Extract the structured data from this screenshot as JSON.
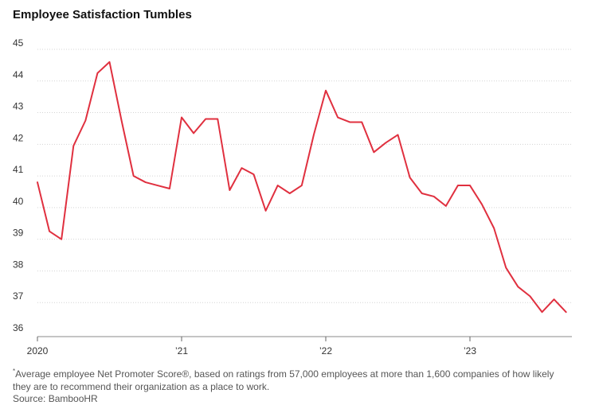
{
  "chart_data": {
    "type": "line",
    "title": "Employee Satisfaction Tumbles",
    "xlabel": "",
    "ylabel": "",
    "ylim": [
      36,
      45
    ],
    "yticks": [
      36,
      37,
      38,
      39,
      40,
      41,
      42,
      43,
      44,
      45
    ],
    "xticks": [
      {
        "month_index": 0,
        "label": "2020"
      },
      {
        "month_index": 12,
        "label": "’21"
      },
      {
        "month_index": 24,
        "label": "’22"
      },
      {
        "month_index": 36,
        "label": "’23"
      }
    ],
    "grid": true,
    "legend": "none",
    "series": [
      {
        "name": "",
        "color": "#e0303f",
        "x": [
          "2020-01",
          "2020-02",
          "2020-03",
          "2020-04",
          "2020-05",
          "2020-06",
          "2020-07",
          "2020-08",
          "2020-09",
          "2020-10",
          "2020-11",
          "2020-12",
          "2021-01",
          "2021-02",
          "2021-03",
          "2021-04",
          "2021-05",
          "2021-06",
          "2021-07",
          "2021-08",
          "2021-09",
          "2021-10",
          "2021-11",
          "2021-12",
          "2022-01",
          "2022-02",
          "2022-03",
          "2022-04",
          "2022-05",
          "2022-06",
          "2022-07",
          "2022-08",
          "2022-09",
          "2022-10",
          "2022-11",
          "2022-12",
          "2023-01",
          "2023-02",
          "2023-03",
          "2023-04",
          "2023-05",
          "2023-06",
          "2023-07",
          "2023-08",
          "2023-09"
        ],
        "values": [
          40.8,
          39.25,
          39.0,
          41.95,
          42.75,
          44.25,
          44.6,
          42.75,
          41.0,
          40.8,
          40.7,
          40.6,
          42.85,
          42.35,
          42.8,
          42.8,
          40.55,
          41.25,
          41.05,
          39.9,
          40.7,
          40.45,
          40.7,
          42.3,
          43.7,
          42.85,
          42.7,
          42.7,
          41.75,
          42.05,
          42.3,
          40.95,
          40.45,
          40.35,
          40.05,
          40.7,
          40.7,
          40.1,
          39.35,
          38.1,
          37.5,
          37.2,
          36.7,
          37.1,
          36.7
        ]
      }
    ]
  },
  "footnote": {
    "marker": "*",
    "text": "Average employee Net Promoter Score®, based on ratings from 57,000 employees at more than 1,600 companies of how likely they are to recommend their organization as a place to work."
  },
  "source": "Source: BambooHR"
}
